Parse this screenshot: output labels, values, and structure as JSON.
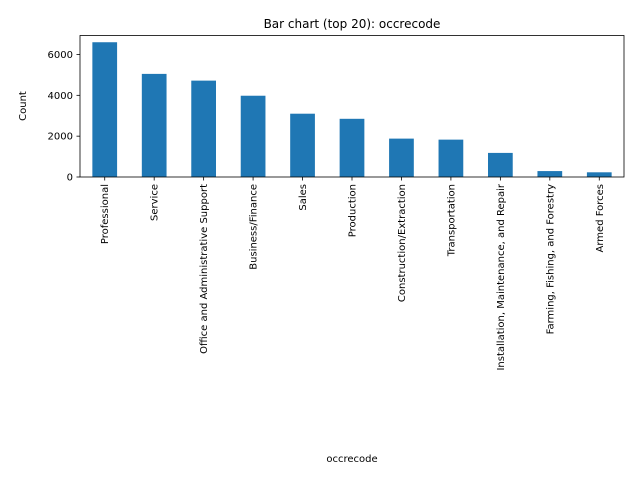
{
  "chart_data": {
    "type": "bar",
    "title": "Bar chart (top 20): occrecode",
    "xlabel": "occrecode",
    "ylabel": "Count",
    "categories": [
      "Professional",
      "Service",
      "Office and Administrative Support",
      "Business/Finance",
      "Sales",
      "Production",
      "Construction/Extraction",
      "Transportation",
      "Installation, Maintenance, and Repair",
      "Farming, Fishing, and Forestry",
      "Armed Forces"
    ],
    "values": [
      6600,
      5050,
      4720,
      3980,
      3100,
      2850,
      1880,
      1830,
      1180,
      290,
      230
    ],
    "ylim": [
      0,
      6930
    ],
    "yticks": [
      0,
      2000,
      4000,
      6000
    ],
    "grid": false,
    "legend": "none",
    "bar_color": "#1f77b4"
  }
}
